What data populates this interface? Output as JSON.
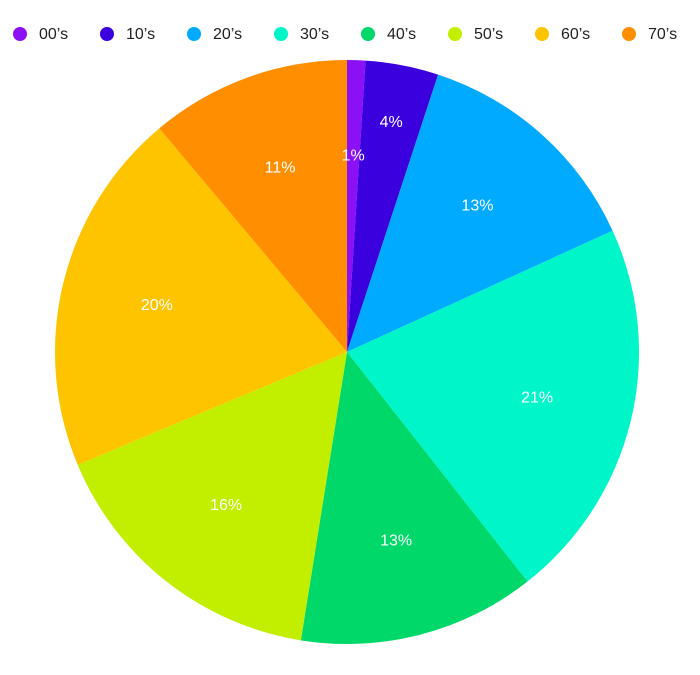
{
  "chart_data": {
    "type": "pie",
    "categories": [
      "00’s",
      "10’s",
      "20’s",
      "30’s",
      "40’s",
      "50’s",
      "60’s",
      "70’s"
    ],
    "values": [
      1,
      4,
      13,
      21,
      13,
      16,
      20,
      11
    ],
    "value_labels": [
      "1%",
      "4%",
      "13%",
      "21%",
      "13%",
      "16%",
      "20%",
      "11%"
    ],
    "colors": [
      "#8b10f5",
      "#3a00dd",
      "#00aaff",
      "#00f5c8",
      "#00d86a",
      "#c2ee00",
      "#ffc400",
      "#ff8f00"
    ],
    "legend": "top"
  }
}
